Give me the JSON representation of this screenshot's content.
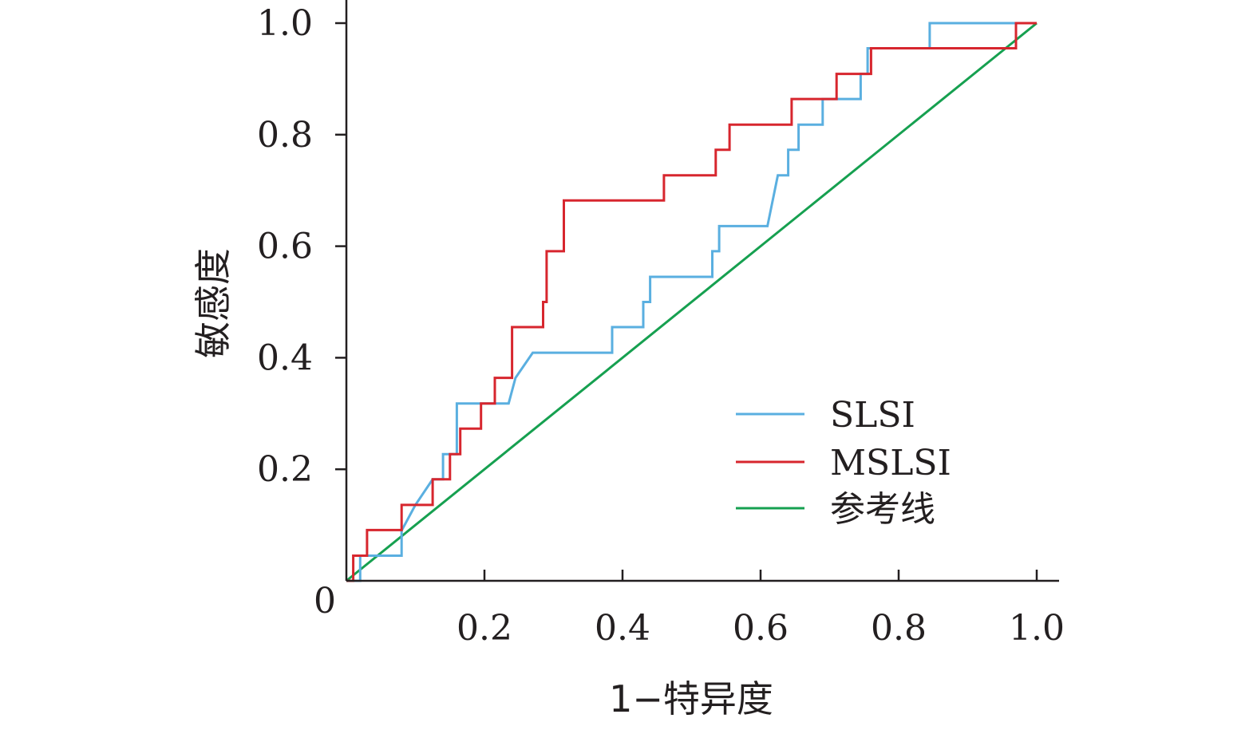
{
  "chart_data": {
    "type": "line",
    "xlabel": "1−特异度",
    "ylabel": "敏感度",
    "xlim": [
      0,
      1.0
    ],
    "ylim": [
      0,
      1.0
    ],
    "x_ticks": [
      0.2,
      0.4,
      0.6,
      0.8,
      1.0
    ],
    "x_tick_labels": [
      "0.2",
      "0.4",
      "0.6",
      "0.8",
      "1.0"
    ],
    "y_ticks": [
      0.2,
      0.4,
      0.6,
      0.8,
      1.0
    ],
    "y_tick_labels": [
      "0.2",
      "0.4",
      "0.6",
      "0.8",
      "1.0"
    ],
    "origin_label": "0",
    "grid": false,
    "legend_position": "bottom-right",
    "series": [
      {
        "name": "SLSI",
        "color": "#5aafe0",
        "points": [
          [
            0.0,
            0.0
          ],
          [
            0.02,
            0.0
          ],
          [
            0.02,
            0.045
          ],
          [
            0.08,
            0.045
          ],
          [
            0.08,
            0.09
          ],
          [
            0.1,
            0.136
          ],
          [
            0.125,
            0.182
          ],
          [
            0.14,
            0.182
          ],
          [
            0.14,
            0.227
          ],
          [
            0.16,
            0.227
          ],
          [
            0.16,
            0.318
          ],
          [
            0.235,
            0.318
          ],
          [
            0.245,
            0.364
          ],
          [
            0.27,
            0.409
          ],
          [
            0.385,
            0.409
          ],
          [
            0.385,
            0.455
          ],
          [
            0.43,
            0.455
          ],
          [
            0.43,
            0.5
          ],
          [
            0.44,
            0.5
          ],
          [
            0.44,
            0.545
          ],
          [
            0.53,
            0.545
          ],
          [
            0.53,
            0.591
          ],
          [
            0.54,
            0.591
          ],
          [
            0.54,
            0.636
          ],
          [
            0.61,
            0.636
          ],
          [
            0.625,
            0.727
          ],
          [
            0.64,
            0.727
          ],
          [
            0.64,
            0.773
          ],
          [
            0.655,
            0.773
          ],
          [
            0.655,
            0.818
          ],
          [
            0.69,
            0.818
          ],
          [
            0.69,
            0.864
          ],
          [
            0.745,
            0.864
          ],
          [
            0.745,
            0.909
          ],
          [
            0.755,
            0.909
          ],
          [
            0.755,
            0.955
          ],
          [
            0.845,
            0.955
          ],
          [
            0.845,
            1.0
          ],
          [
            1.0,
            1.0
          ]
        ]
      },
      {
        "name": "MSLSI",
        "color": "#d7262e",
        "points": [
          [
            0.0,
            0.0
          ],
          [
            0.01,
            0.0
          ],
          [
            0.01,
            0.045
          ],
          [
            0.03,
            0.045
          ],
          [
            0.03,
            0.091
          ],
          [
            0.08,
            0.091
          ],
          [
            0.08,
            0.136
          ],
          [
            0.125,
            0.136
          ],
          [
            0.125,
            0.182
          ],
          [
            0.15,
            0.182
          ],
          [
            0.15,
            0.227
          ],
          [
            0.165,
            0.227
          ],
          [
            0.165,
            0.273
          ],
          [
            0.195,
            0.273
          ],
          [
            0.195,
            0.318
          ],
          [
            0.215,
            0.318
          ],
          [
            0.215,
            0.364
          ],
          [
            0.24,
            0.364
          ],
          [
            0.24,
            0.455
          ],
          [
            0.285,
            0.455
          ],
          [
            0.285,
            0.5
          ],
          [
            0.29,
            0.5
          ],
          [
            0.29,
            0.591
          ],
          [
            0.315,
            0.591
          ],
          [
            0.315,
            0.682
          ],
          [
            0.46,
            0.682
          ],
          [
            0.46,
            0.727
          ],
          [
            0.535,
            0.727
          ],
          [
            0.535,
            0.773
          ],
          [
            0.555,
            0.773
          ],
          [
            0.555,
            0.818
          ],
          [
            0.645,
            0.818
          ],
          [
            0.645,
            0.864
          ],
          [
            0.71,
            0.864
          ],
          [
            0.71,
            0.909
          ],
          [
            0.76,
            0.909
          ],
          [
            0.76,
            0.955
          ],
          [
            0.97,
            0.955
          ],
          [
            0.97,
            1.0
          ],
          [
            1.0,
            1.0
          ]
        ]
      },
      {
        "name": "参考线",
        "color": "#16a050",
        "points": [
          [
            0.0,
            0.0
          ],
          [
            1.0,
            1.0
          ]
        ]
      }
    ]
  }
}
